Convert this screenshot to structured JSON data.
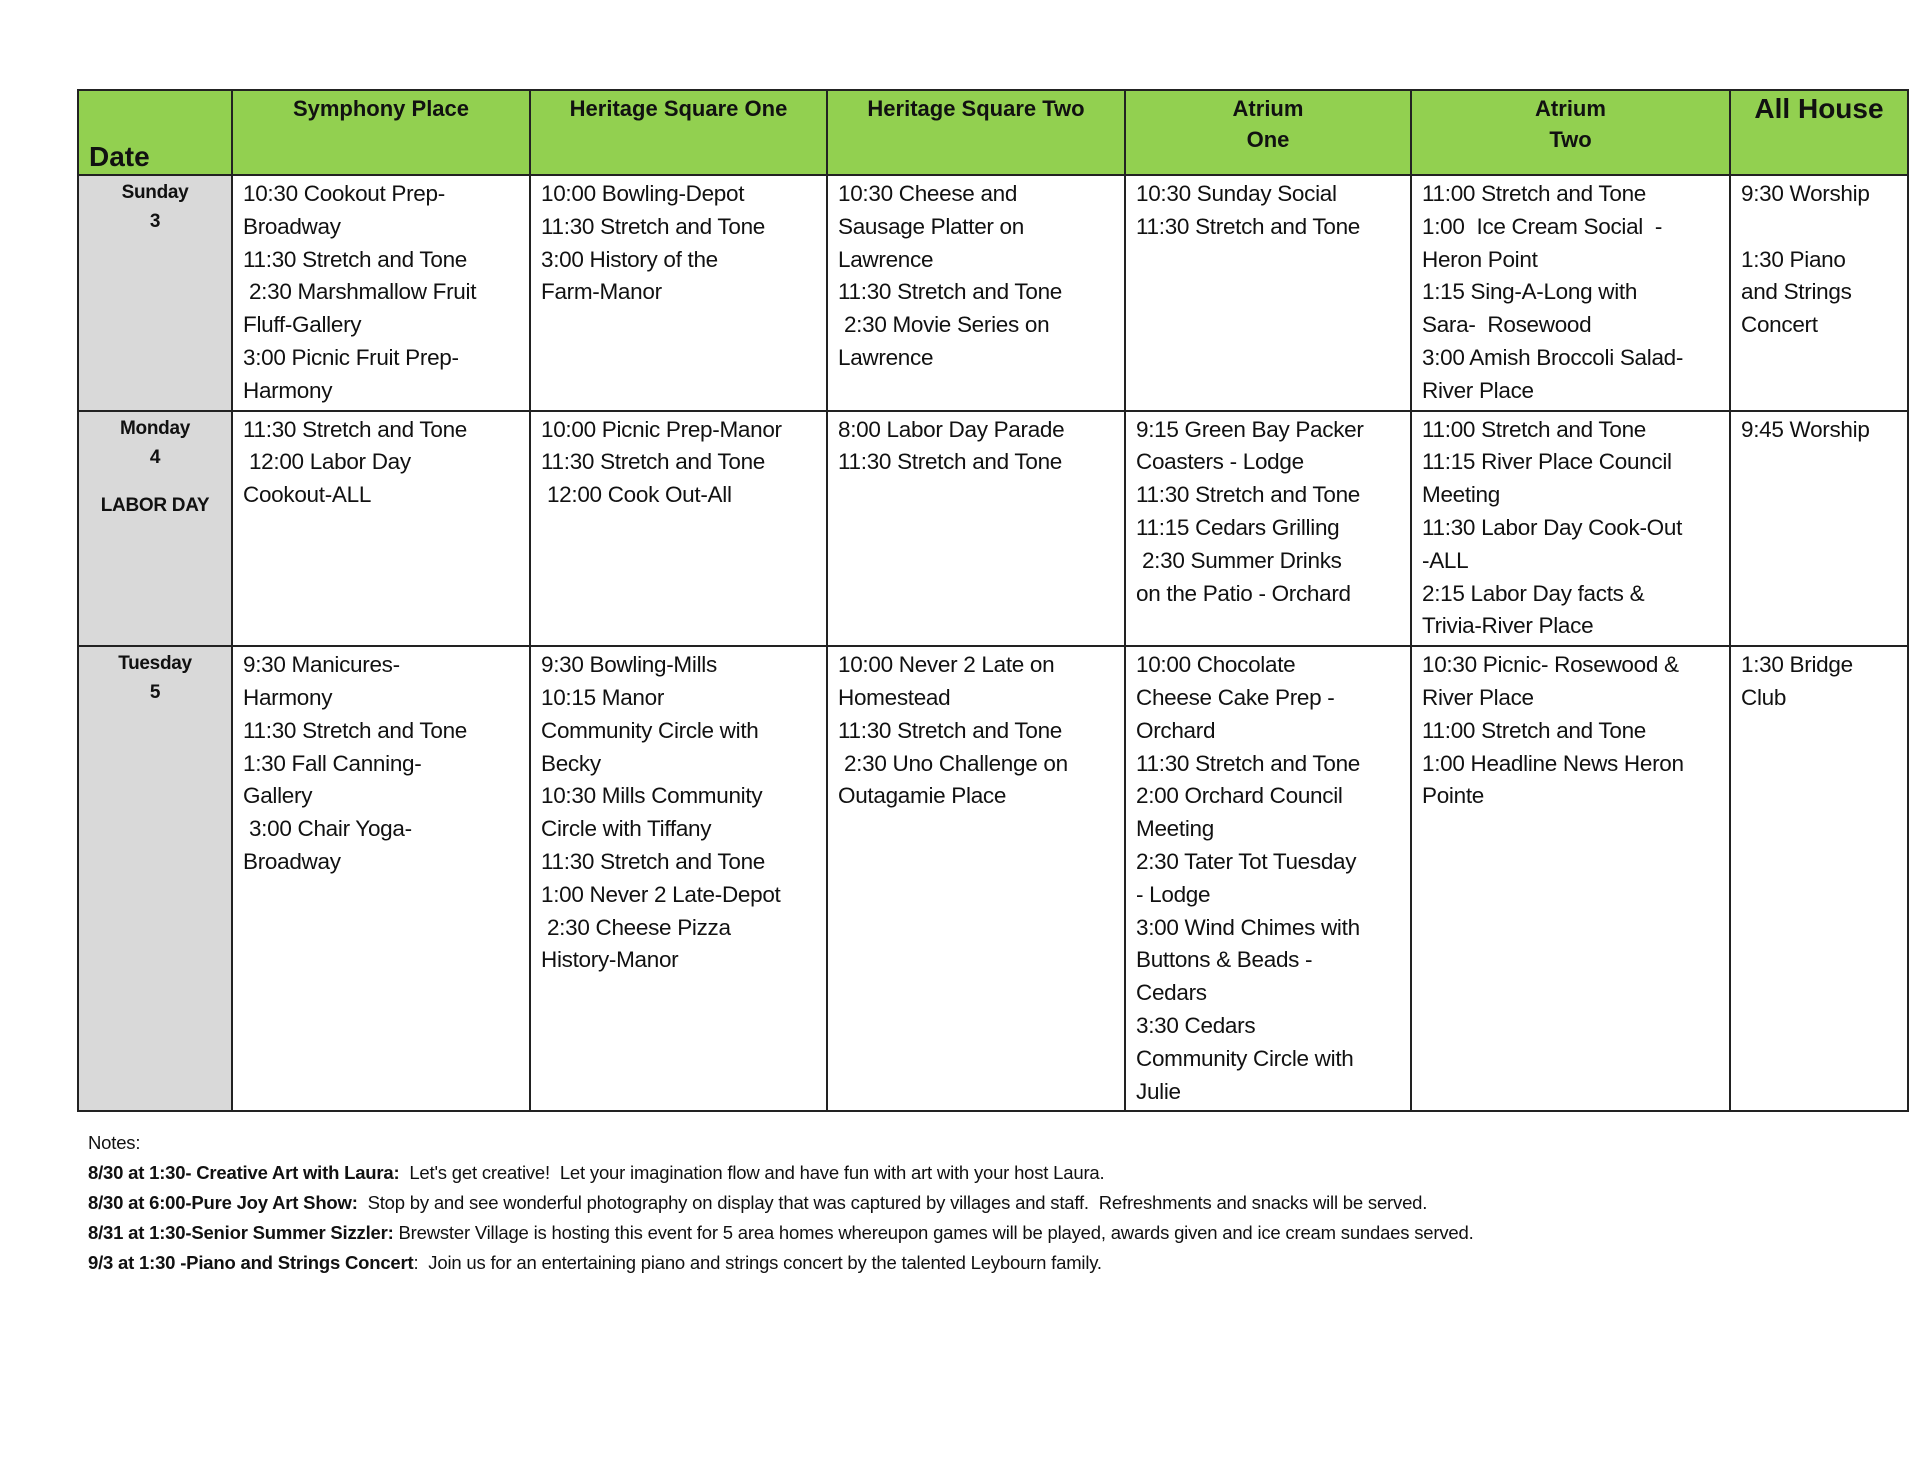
{
  "header": {
    "date": "Date",
    "columns": [
      "Symphony Place",
      "Heritage Square One",
      "Heritage Square Two",
      "Atrium\nOne",
      "Atrium\nTwo",
      "All House"
    ]
  },
  "rows": [
    {
      "day": "Sunday",
      "num": "3",
      "note": "",
      "cells": [
        [
          "10:30 Cookout Prep-",
          "Broadway",
          "11:30 Stretch and Tone",
          " 2:30 Marshmallow Fruit",
          "Fluff-Gallery",
          "3:00 Picnic Fruit Prep-",
          "Harmony"
        ],
        [
          "10:00 Bowling-Depot",
          "11:30 Stretch and Tone",
          "3:00 History of the",
          "Farm-Manor"
        ],
        [
          "10:30 Cheese and",
          "Sausage Platter on",
          "Lawrence",
          "11:30 Stretch and Tone",
          " 2:30 Movie Series on",
          "Lawrence"
        ],
        [
          "10:30 Sunday Social",
          "11:30 Stretch and Tone"
        ],
        [
          "11:00 Stretch and Tone",
          "1:00  Ice Cream Social  -",
          "Heron Point",
          "1:15 Sing-A-Long with",
          "Sara-  Rosewood",
          "3:00 Amish Broccoli Salad-",
          "River Place"
        ],
        [
          "9:30 Worship",
          "",
          "1:30 Piano",
          "and Strings",
          "Concert"
        ]
      ]
    },
    {
      "day": "Monday",
      "num": "4",
      "note": "LABOR DAY",
      "cells": [
        [
          "11:30 Stretch and Tone",
          " 12:00 Labor Day",
          "Cookout-ALL"
        ],
        [
          "10:00 Picnic Prep-Manor",
          "11:30 Stretch and Tone",
          " 12:00 Cook Out-All"
        ],
        [
          "8:00 Labor Day Parade",
          "11:30 Stretch and Tone"
        ],
        [
          "9:15 Green Bay Packer",
          "Coasters - Lodge",
          "11:30 Stretch and Tone",
          "11:15 Cedars Grilling",
          " 2:30 Summer Drinks",
          "on the Patio - Orchard"
        ],
        [
          "11:00 Stretch and Tone",
          "11:15 River Place Council",
          "Meeting",
          "11:30 Labor Day Cook-Out",
          "-ALL",
          "2:15 Labor Day facts &",
          "Trivia-River Place"
        ],
        [
          "9:45 Worship"
        ]
      ]
    },
    {
      "day": "Tuesday",
      "num": "5",
      "note": "",
      "cells": [
        [
          "9:30 Manicures-",
          "Harmony",
          "11:30 Stretch and Tone",
          "1:30 Fall Canning-",
          "Gallery",
          " 3:00 Chair Yoga-",
          "Broadway"
        ],
        [
          "9:30 Bowling-Mills",
          "10:15 Manor",
          "Community Circle with",
          "Becky",
          "10:30 Mills Community",
          "Circle with Tiffany",
          "11:30 Stretch and Tone",
          "1:00 Never 2 Late-Depot",
          " 2:30 Cheese Pizza",
          "History-Manor"
        ],
        [
          "10:00 Never 2 Late on",
          "Homestead",
          "11:30 Stretch and Tone",
          " 2:30 Uno Challenge on",
          "Outagamie Place"
        ],
        [
          "10:00 Chocolate",
          "Cheese Cake Prep -",
          "Orchard",
          "11:30 Stretch and Tone",
          "2:00 Orchard Council",
          "Meeting",
          "2:30 Tater Tot Tuesday",
          "- Lodge",
          "3:00 Wind Chimes with",
          "Buttons & Beads -",
          "Cedars",
          "3:30 Cedars",
          "Community Circle with",
          "Julie"
        ],
        [
          "10:30 Picnic- Rosewood &",
          "River Place",
          "11:00 Stretch and Tone",
          "1:00 Headline News Heron",
          "Pointe"
        ],
        [
          "1:30 Bridge",
          "Club"
        ]
      ]
    }
  ],
  "notes": {
    "title": "Notes:",
    "items": [
      {
        "bold": "8/30 at 1:30- Creative Art with Laura:",
        "text": "  Let's get creative!  Let your imagination flow and have fun with art with your host Laura."
      },
      {
        "bold": "8/30 at 6:00-Pure Joy Art Show:",
        "text": "  Stop by and see wonderful photography on display that was captured by villages and staff.  Refreshments and snacks will be served."
      },
      {
        "bold": "8/31 at 1:30-Senior Summer Sizzler:",
        "text": " Brewster Village is hosting this event for 5 area homes whereupon games will be played, awards given and ice cream sundaes served."
      },
      {
        "bold": "9/3 at 1:30 -Piano and Strings Concert",
        "text": ":  Join us for an entertaining piano and strings concert by the talented Leybourn family."
      }
    ]
  },
  "colors": {
    "header_bg": "#92d050",
    "date_bg": "#d9d9d9"
  }
}
